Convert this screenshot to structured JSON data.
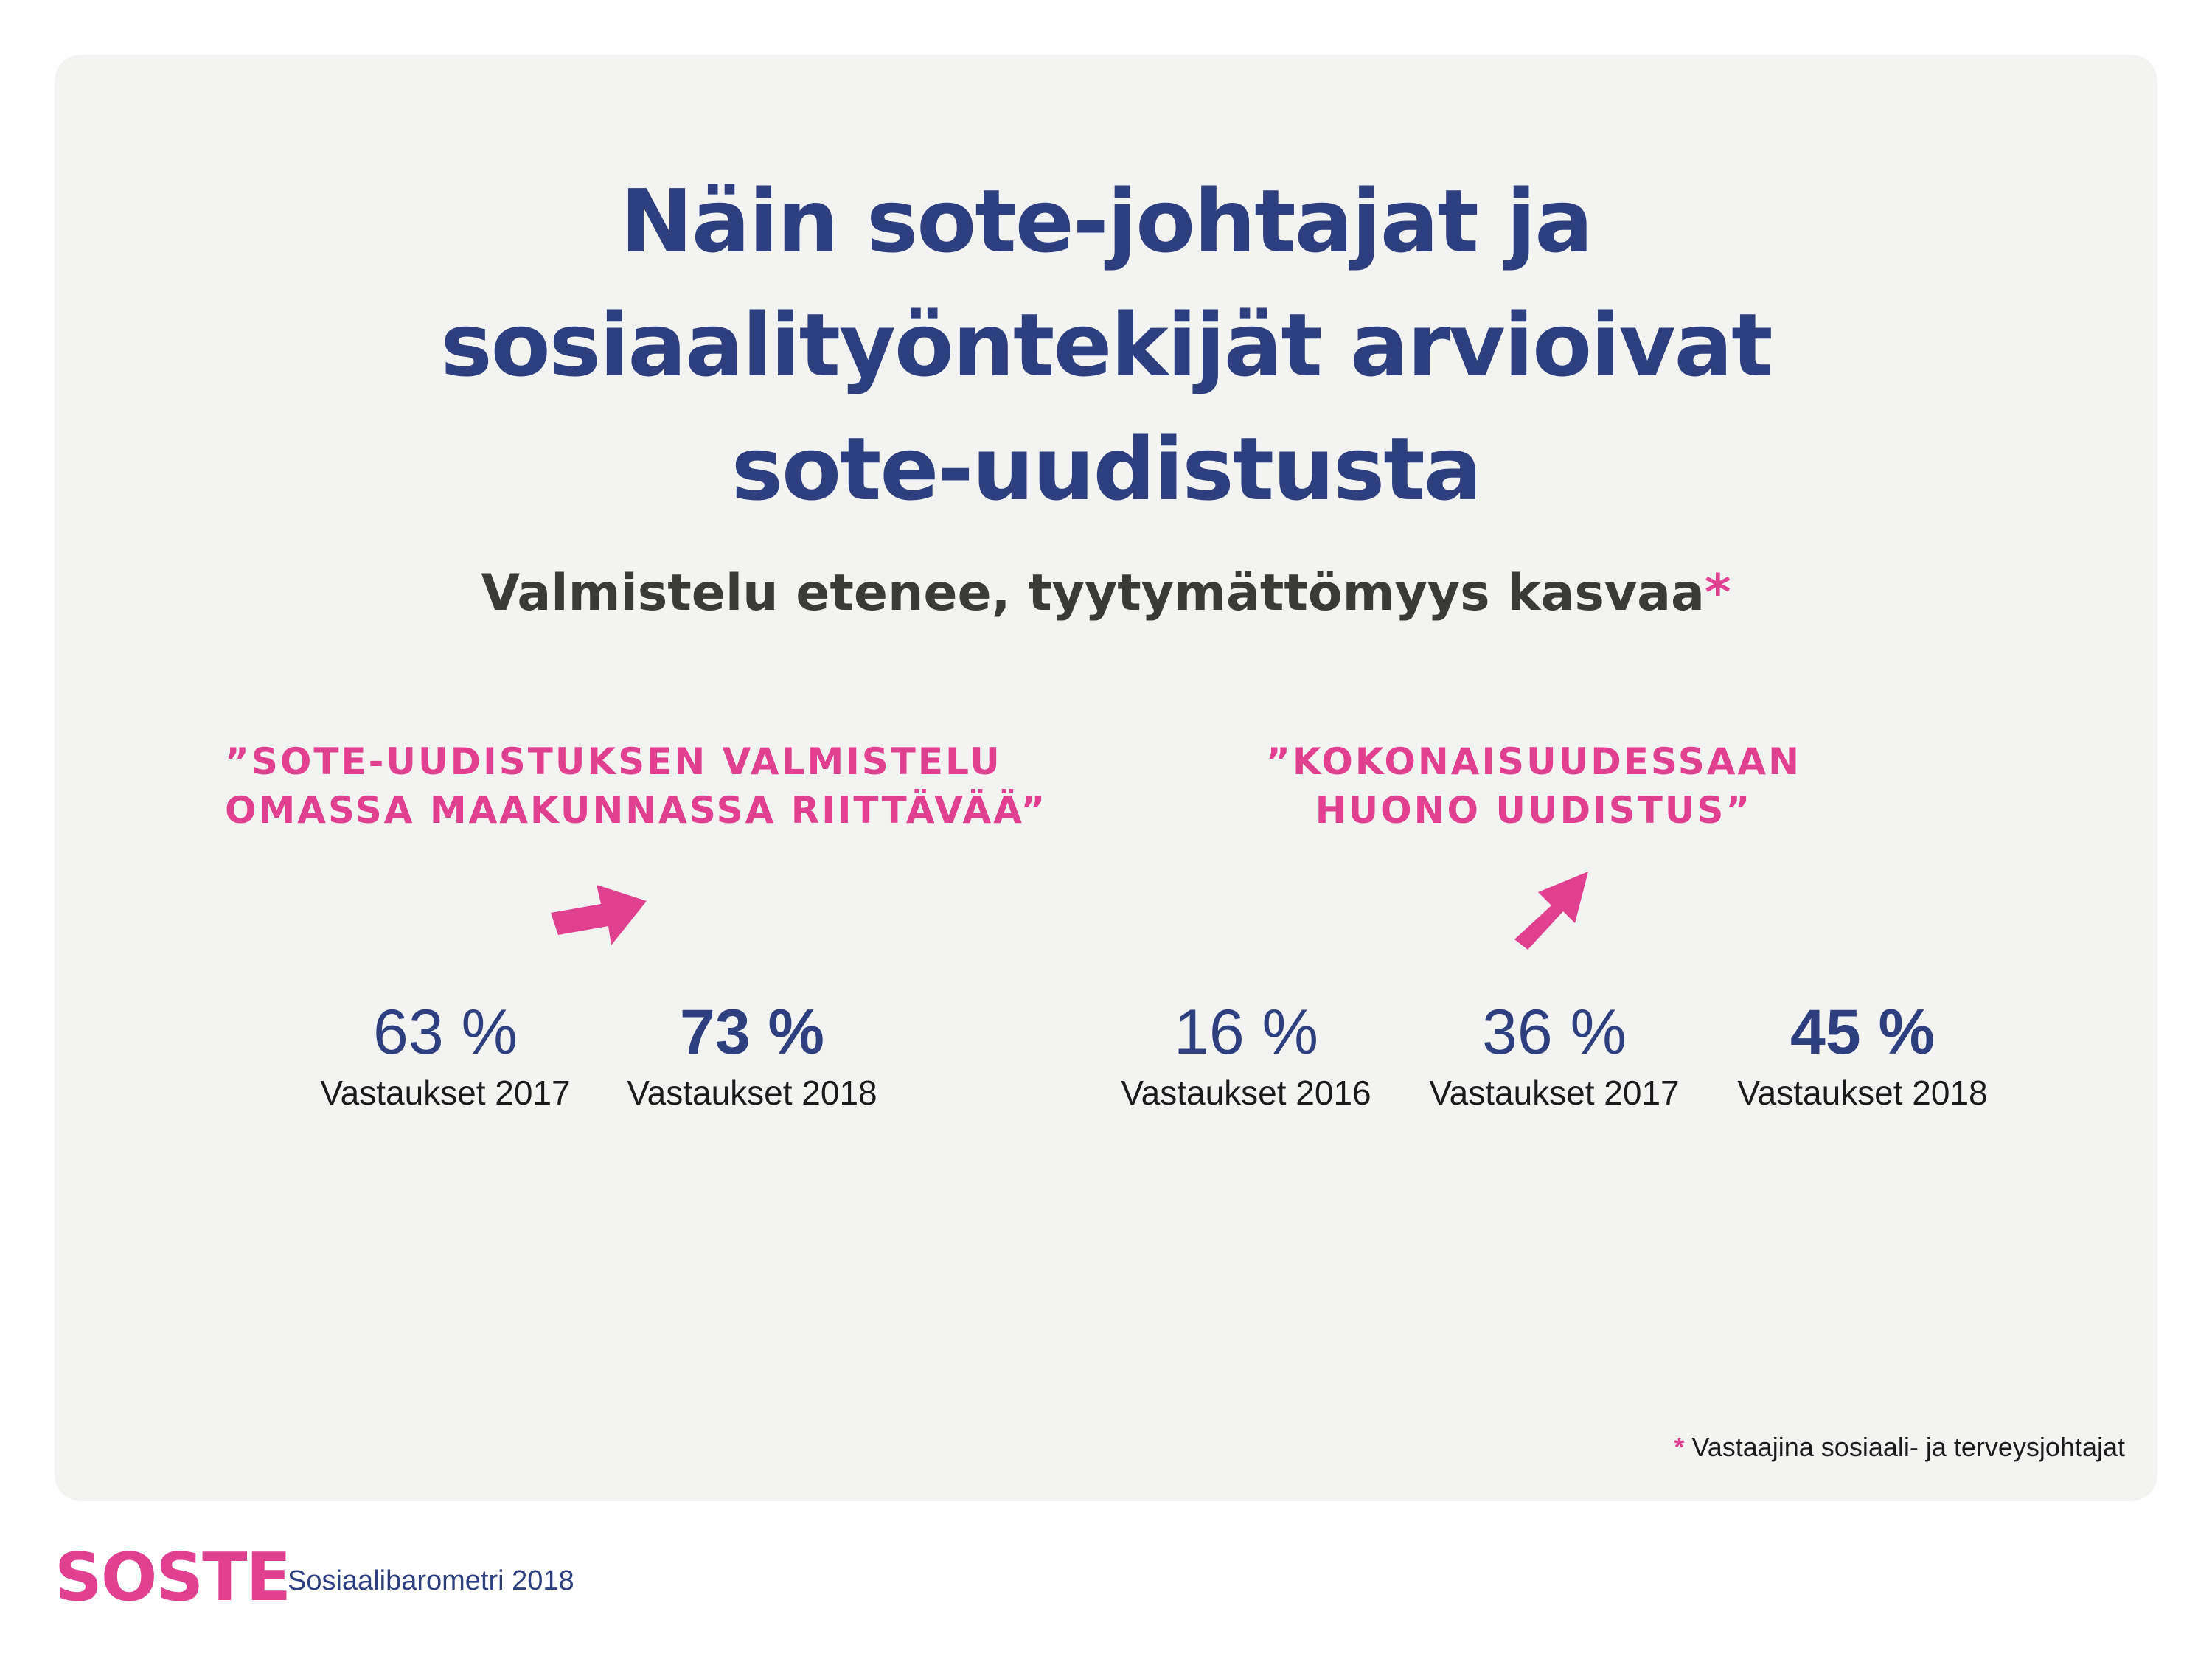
{
  "title_lines": [
    "Näin sote-johtajat ja",
    "sosiaalityöntekijät arvioivat",
    "sote-uudistusta"
  ],
  "subtitle": {
    "text": "Valmistelu etenee, tyytymättömyys kasvaa",
    "marker": "*"
  },
  "sections": [
    {
      "quote_lines": [
        "”SOTE-UUDISTUKSEN VALMISTELU",
        "OMASSA MAAKUNNASSA RIITTÄVÄÄ”"
      ],
      "arrow_icon": "arrow-up-right-icon",
      "stats": [
        {
          "value": "63 %",
          "label": "Vastaukset 2017"
        },
        {
          "value": "73 %",
          "label": "Vastaukset 2018"
        }
      ]
    },
    {
      "quote_lines": [
        "”KOKONAISUUDESSAAN",
        "HUONO UUDISTUS”"
      ],
      "arrow_icon": "arrow-up-right-icon",
      "stats": [
        {
          "value": "16 %",
          "label": "Vastaukset 2016"
        },
        {
          "value": "36 %",
          "label": "Vastaukset 2017"
        },
        {
          "value": "45 %",
          "label": "Vastaukset 2018"
        }
      ]
    }
  ],
  "footnote": {
    "marker": "*",
    "text": " Vastaajina sosiaali- ja terveysjohtajat"
  },
  "footer": {
    "logo": "SOSTE",
    "source": "Sosiaalibarometri 2018"
  },
  "colors": {
    "navy": "#2d3f7f",
    "pink": "#e0408f",
    "panel": "#f3f3f2"
  }
}
